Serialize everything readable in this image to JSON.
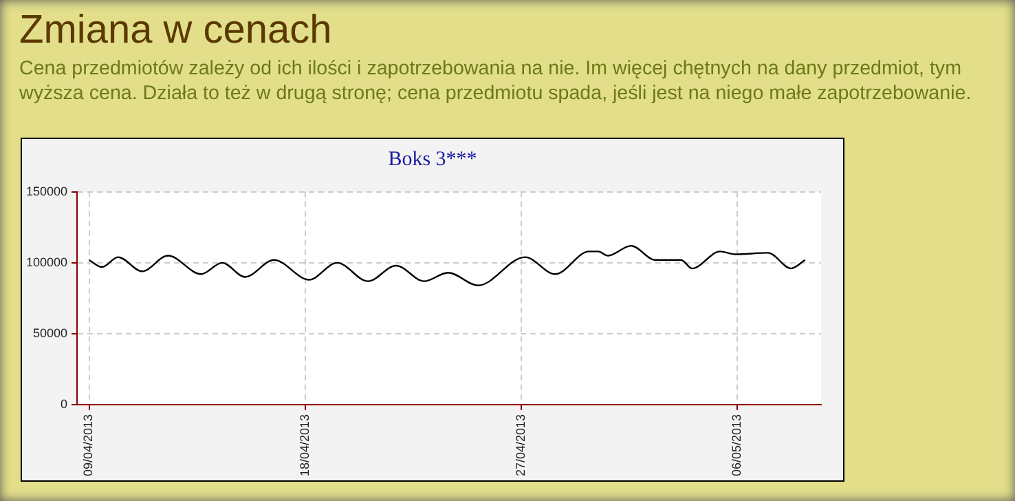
{
  "chart_data": {
    "type": "line",
    "title": "Boks 3***",
    "annotations": [
      "Zmiana w cenach",
      "Cena przedmiotów zależy od ich ilości i zapotrzebowania na nie. Im więcej chętnych na dany przedmiot, tym wyższa cena. Działa to też w drugą stronę; cena przedmiotu spada, jeśli jest na niego małe zapotrzebowanie."
    ],
    "x": [
      "2013-04-09",
      "2013-04-09T13:00",
      "2013-04-10T05:00",
      "2013-04-11T05:00",
      "2013-04-12T07:00",
      "2013-04-13T16:00",
      "2013-04-14T13:00",
      "2013-04-15T12:00",
      "2013-04-16T17:00",
      "2013-04-18T04:00",
      "2013-04-19T08:00",
      "2013-04-20T15:00",
      "2013-04-21T19:00",
      "2013-04-22T23:00",
      "2013-04-23T23:00",
      "2013-04-25T05:00",
      "2013-04-27T04:00",
      "2013-04-28T10:00",
      "2013-04-29T20:00",
      "2013-04-30T05:00",
      "2013-04-30T15:00",
      "2013-05-01T14:00",
      "2013-05-02T14:00",
      "2013-05-03T16:00",
      "2013-05-04T03:00",
      "2013-05-05T07:00",
      "2013-05-05T22:00",
      "2013-05-07T07:00",
      "2013-05-08T06:00",
      "2013-05-08T20:00"
    ],
    "series": [
      {
        "color": "#000000",
        "values": [
          102000,
          97000,
          104000,
          94000,
          105000,
          92000,
          100000,
          90000,
          102000,
          88000,
          100000,
          87000,
          98000,
          87000,
          93000,
          84000,
          104000,
          92000,
          108000,
          108000,
          105000,
          112000,
          102000,
          102000,
          96000,
          108000,
          106000,
          107000,
          96000,
          102000
        ]
      }
    ],
    "xlim": [
      "2013-04-08T12:00",
      "2013-05-09T12:00"
    ],
    "xticks": [
      {
        "value": "2013-04-09",
        "label": "09/04/2013"
      },
      {
        "value": "2013-04-18",
        "label": "18/04/2013"
      },
      {
        "value": "2013-04-27",
        "label": "27/04/2013"
      },
      {
        "value": "2013-05-06",
        "label": "06/05/2013"
      }
    ],
    "ylim": [
      0,
      150000
    ],
    "yticks": [
      0,
      50000,
      100000,
      150000
    ],
    "grid": true,
    "legend": false,
    "marker": "none",
    "line_style": "solid"
  }
}
